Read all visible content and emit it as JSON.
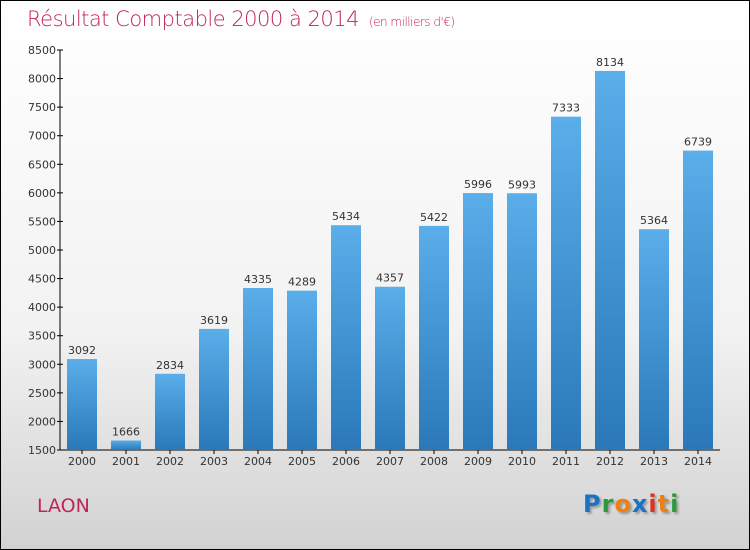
{
  "chart_data": {
    "type": "bar",
    "title": "Résultat Comptable 2000 à 2014",
    "subtitle": "(en milliers d'€)",
    "categories": [
      "2000",
      "2001",
      "2002",
      "2003",
      "2004",
      "2005",
      "2006",
      "2007",
      "2008",
      "2009",
      "2010",
      "2011",
      "2012",
      "2013",
      "2014"
    ],
    "values": [
      3092,
      1666,
      2834,
      3619,
      4335,
      4289,
      5434,
      4357,
      5422,
      5996,
      5993,
      7333,
      8134,
      5364,
      6739
    ],
    "ylim": [
      1500,
      8500
    ],
    "yticks": [
      1500,
      2000,
      2500,
      3000,
      3500,
      4000,
      4500,
      5000,
      5500,
      6000,
      6500,
      7000,
      7500,
      8000,
      8500
    ],
    "xlabel": "",
    "ylabel": "",
    "bar_color": "#3a8fd6"
  },
  "city": "LAON",
  "logo": "Proxiti"
}
